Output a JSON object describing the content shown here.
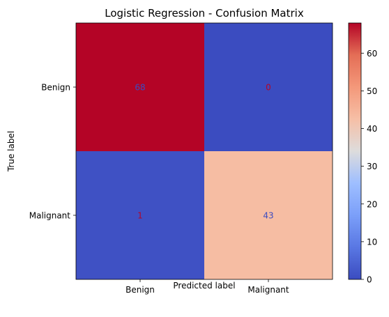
{
  "chart_data": {
    "type": "heatmap",
    "title": "Logistic Regression - Confusion Matrix",
    "xlabel": "Predicted label",
    "ylabel": "True label",
    "x_categories": [
      "Benign",
      "Malignant"
    ],
    "y_categories": [
      "Benign",
      "Malignant"
    ],
    "matrix": [
      [
        68,
        0
      ],
      [
        1,
        43
      ]
    ],
    "cell_labels": [
      [
        "68",
        "0"
      ],
      [
        "1",
        "43"
      ]
    ],
    "colorbar": {
      "colormap": "coolwarm",
      "range": [
        0,
        68
      ],
      "ticks": [
        0,
        10,
        20,
        30,
        40,
        50,
        60
      ],
      "tick_labels": [
        "0",
        "10",
        "20",
        "30",
        "40",
        "50",
        "60"
      ]
    },
    "annotation_colors": {
      "on_warm": "#3b4cc0",
      "on_cool": "#b40426"
    }
  }
}
